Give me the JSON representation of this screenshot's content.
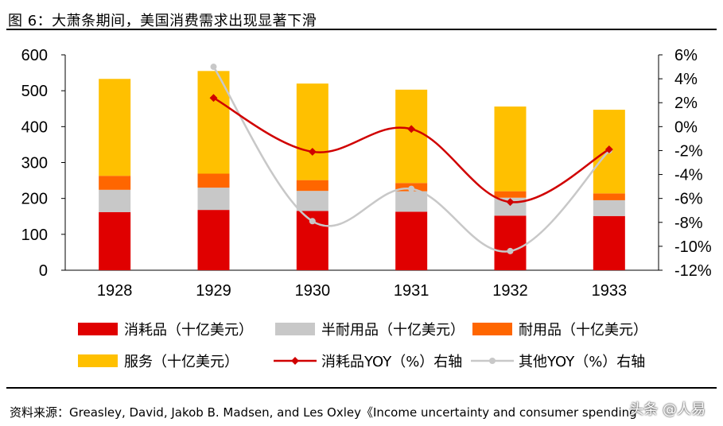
{
  "title": "图 6：大萧条期间，美国消费需求出现显著下滑",
  "source": "资料来源：Greasley, David, Jakob B. Madsen, and Les Oxley《Income uncertainty and consumer spending",
  "watermark": "头条 @人易",
  "colors": {
    "consumables": "#e00000",
    "semi_durables": "#c8c8c8",
    "durables": "#ff6600",
    "services": "#ffc000",
    "yoy_consumables": "#d00000",
    "yoy_other": "#c8c8c8"
  },
  "chart_data": {
    "type": "bar",
    "categories": [
      "1928",
      "1929",
      "1930",
      "1931",
      "1932",
      "1933"
    ],
    "series": [
      {
        "name": "消耗品（十亿美元）",
        "kind": "bar",
        "color": "#e00000",
        "values": [
          162,
          168,
          165,
          163,
          152,
          151
        ]
      },
      {
        "name": "半耐用品（十亿美元）",
        "kind": "bar",
        "color": "#c8c8c8",
        "values": [
          62,
          62,
          56,
          57,
          50,
          44
        ]
      },
      {
        "name": "耐用品（十亿美元）",
        "kind": "bar",
        "color": "#ff6600",
        "values": [
          39,
          39,
          30,
          23,
          18,
          19
        ]
      },
      {
        "name": "服务（十亿美元）",
        "kind": "bar",
        "color": "#ffc000",
        "values": [
          270,
          286,
          269,
          260,
          236,
          233
        ]
      },
      {
        "name": "消耗品YOY（%）右轴",
        "kind": "line",
        "axis": "right",
        "color": "#d00000",
        "x": [
          "1929",
          "1930",
          "1931",
          "1932",
          "1933"
        ],
        "values": [
          2.4,
          -2.1,
          -0.2,
          -6.3,
          -1.9
        ]
      },
      {
        "name": "其他YOY（%）右轴",
        "kind": "line",
        "axis": "right",
        "color": "#c8c8c8",
        "x": [
          "1929",
          "1930",
          "1931",
          "1932",
          "1933"
        ],
        "values": [
          5.0,
          -7.9,
          -5.2,
          -10.4,
          -2.0
        ]
      }
    ],
    "ylim": [
      0,
      600
    ],
    "yticks": [
      0,
      100,
      200,
      300,
      400,
      500,
      600
    ],
    "y2lim": [
      -12,
      6
    ],
    "y2ticks": [
      "6%",
      "4%",
      "2%",
      "0%",
      "-2%",
      "-4%",
      "-6%",
      "-8%",
      "-10%",
      "-12%"
    ],
    "y2tick_values": [
      6,
      4,
      2,
      0,
      -2,
      -4,
      -6,
      -8,
      -10,
      -12
    ],
    "grid": false,
    "legend_position": "bottom"
  }
}
